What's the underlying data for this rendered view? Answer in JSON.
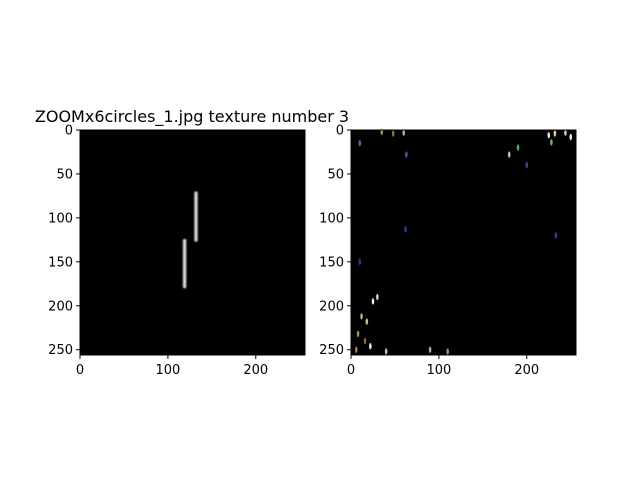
{
  "chart_data": [
    {
      "type": "heatmap",
      "title": "ZOOMx6circles_1.jpg texture number 3",
      "image_size": [
        256,
        256
      ],
      "xlim": [
        0,
        256
      ],
      "ylim": [
        256,
        0
      ],
      "xticks": [
        0,
        100,
        200
      ],
      "yticks": [
        0,
        50,
        100,
        150,
        200,
        250
      ],
      "colormap": "gray",
      "background_color": "#000000",
      "features": [
        {
          "label": "bright vertical bar",
          "x": 132,
          "y_start": 70,
          "y_end": 127
        },
        {
          "label": "bright vertical bar",
          "x": 119,
          "y_start": 124,
          "y_end": 180
        }
      ]
    },
    {
      "type": "heatmap",
      "title": "",
      "image_size": [
        256,
        256
      ],
      "xlim": [
        0,
        256
      ],
      "ylim": [
        256,
        0
      ],
      "xticks": [
        0,
        100,
        200
      ],
      "yticks": [
        0,
        50,
        100,
        150,
        200,
        250
      ],
      "colormap": "rgb",
      "background_color": "#000000",
      "speckles": [
        {
          "x": 35,
          "y": 2,
          "color": "#c0a060"
        },
        {
          "x": 48,
          "y": 4,
          "color": "#a08040"
        },
        {
          "x": 60,
          "y": 3,
          "color": "#d0c0a0"
        },
        {
          "x": 10,
          "y": 15,
          "color": "#6070c0"
        },
        {
          "x": 63,
          "y": 28,
          "color": "#5060b0"
        },
        {
          "x": 180,
          "y": 28,
          "color": "#d0d0d0"
        },
        {
          "x": 190,
          "y": 20,
          "color": "#60c060"
        },
        {
          "x": 225,
          "y": 6,
          "color": "#ffffff"
        },
        {
          "x": 232,
          "y": 4,
          "color": "#f0f0a0"
        },
        {
          "x": 244,
          "y": 3,
          "color": "#e0e0e0"
        },
        {
          "x": 250,
          "y": 8,
          "color": "#ffffff"
        },
        {
          "x": 228,
          "y": 14,
          "color": "#80c080"
        },
        {
          "x": 200,
          "y": 40,
          "color": "#4050a0"
        },
        {
          "x": 62,
          "y": 113,
          "color": "#3040c0"
        },
        {
          "x": 233,
          "y": 120,
          "color": "#3040c0"
        },
        {
          "x": 10,
          "y": 150,
          "color": "#3040a0"
        },
        {
          "x": 25,
          "y": 195,
          "color": "#ffffff"
        },
        {
          "x": 30,
          "y": 190,
          "color": "#e0e0e0"
        },
        {
          "x": 12,
          "y": 212,
          "color": "#d0c080"
        },
        {
          "x": 18,
          "y": 218,
          "color": "#e0d0a0"
        },
        {
          "x": 8,
          "y": 232,
          "color": "#c0a060"
        },
        {
          "x": 16,
          "y": 240,
          "color": "#a07040"
        },
        {
          "x": 22,
          "y": 246,
          "color": "#ffffff"
        },
        {
          "x": 6,
          "y": 250,
          "color": "#c09050"
        },
        {
          "x": 40,
          "y": 252,
          "color": "#d0d0d0"
        },
        {
          "x": 90,
          "y": 250,
          "color": "#c0c0c0"
        },
        {
          "x": 110,
          "y": 252,
          "color": "#a0a0a0"
        }
      ]
    }
  ]
}
